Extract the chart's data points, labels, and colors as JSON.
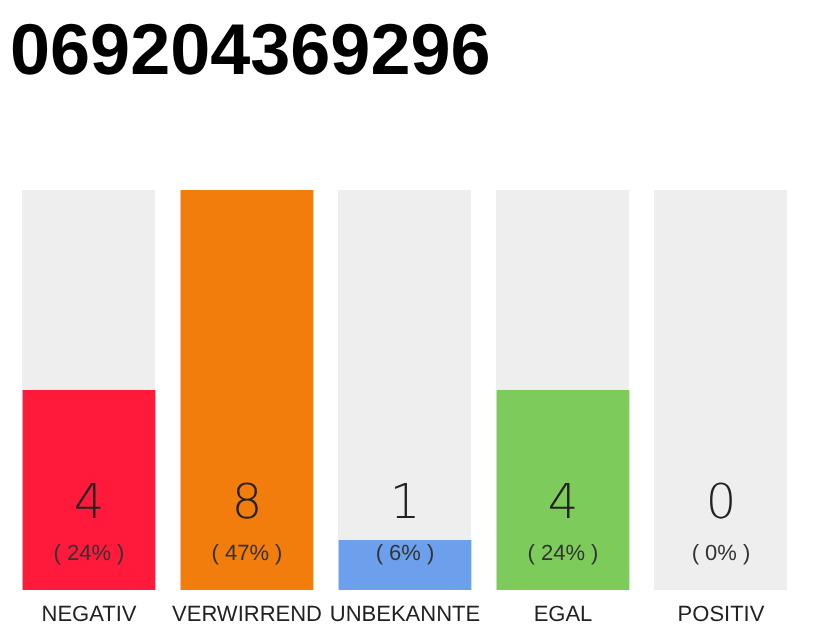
{
  "chart_data": {
    "type": "bar",
    "title": "069204369296",
    "relative": false,
    "categories": [
      "NEGATIV",
      "VERWIRREND",
      "UNBEKANNTE",
      "EGAL",
      "POSITIV"
    ],
    "values": [
      4,
      8,
      1,
      4,
      0
    ],
    "colors": [
      "#ff1a3c",
      "#f27c0c",
      "#6ca0ec",
      "#7dcb5a",
      "#cccccc"
    ],
    "data_labels": true,
    "annotations": [
      "( 24% )",
      "( 47% )",
      "( 6% )",
      "( 24% )",
      "( 0% )"
    ],
    "legend": false,
    "grid": false
  }
}
